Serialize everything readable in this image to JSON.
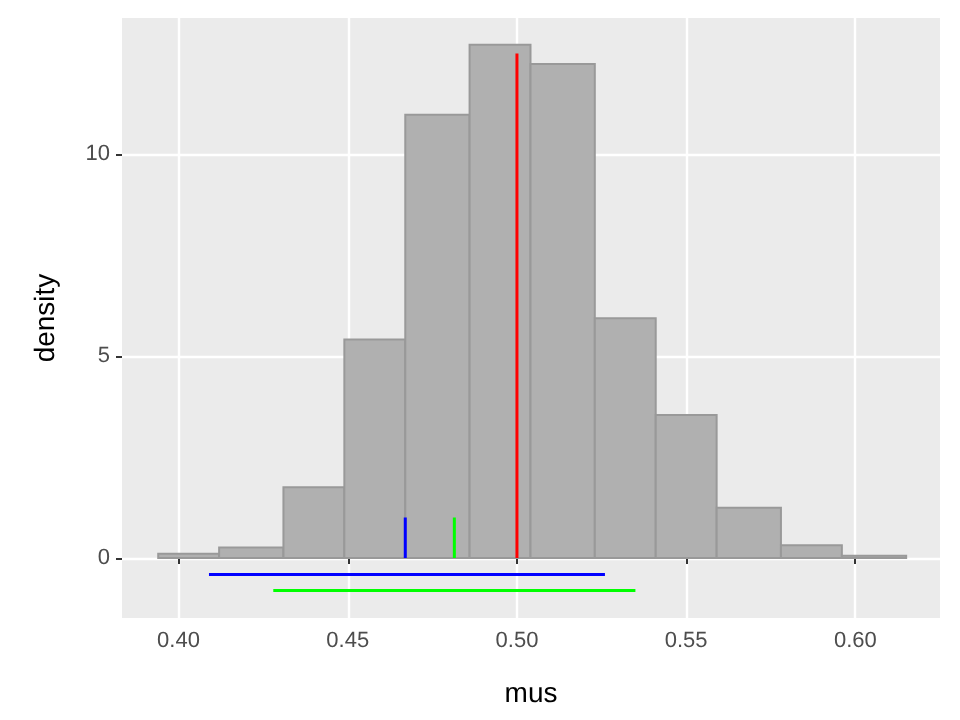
{
  "chart_data": {
    "type": "histogram",
    "xlabel": "mus",
    "ylabel": "density",
    "bins": [
      0.394,
      0.412,
      0.431,
      0.449,
      0.467,
      0.486,
      0.504,
      0.523,
      0.541,
      0.559,
      0.578,
      0.596,
      0.615
    ],
    "values": [
      0.1,
      0.26,
      1.75,
      5.41,
      10.98,
      12.72,
      12.24,
      5.94,
      3.54,
      1.24,
      0.31,
      0.05
    ],
    "color": "#b0b0b0",
    "series": [
      {
        "type": "line",
        "color": "#ff0000",
        "x": [
          0.5,
          0.5
        ],
        "values": [
          0,
          12.5
        ]
      },
      {
        "type": "line",
        "color": "#0000ff",
        "x": [
          0.467,
          0.467
        ],
        "values": [
          0,
          1
        ]
      },
      {
        "type": "line",
        "color": "#00ff00",
        "x": [
          0.4815,
          0.4815
        ],
        "values": [
          0,
          1
        ]
      },
      {
        "type": "line",
        "color": "#0000ff",
        "x": [
          0.409,
          0.526
        ],
        "values": [
          -0.41,
          -0.41
        ]
      },
      {
        "type": "line",
        "color": "#00ff00",
        "x": [
          0.428,
          0.535
        ],
        "values": [
          -0.81,
          -0.81
        ]
      }
    ],
    "xlim": [
      0.3833,
      0.625
    ],
    "xticks": [
      {
        "value": 0.4,
        "label": "0.40"
      },
      0.45,
      {
        "value": 0.5,
        "label": "0.50"
      },
      0.55,
      {
        "value": 0.6,
        "label": "0.60"
      }
    ],
    "ylim": [
      -1.49,
      13.38
    ],
    "yticks": [
      0,
      5,
      10
    ],
    "grid": true
  }
}
